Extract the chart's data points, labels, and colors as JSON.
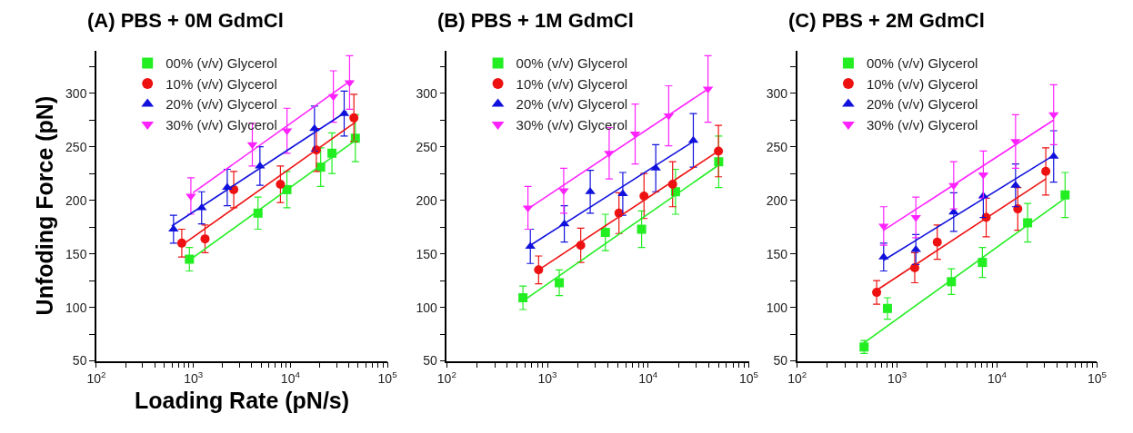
{
  "chart_data": [
    {
      "type": "scatter",
      "title": "(A) PBS + 0M GdmCl",
      "xlabel": "Loading Rate (pN/s)",
      "ylabel": "Unfoding Force (pN)",
      "log": "x",
      "legend": "top left",
      "xlim": [
        100,
        100000
      ],
      "ylim": [
        50,
        340
      ],
      "xticks": [
        {
          "value": 100,
          "label": "10$^{2}$"
        },
        {
          "value": 200,
          "label": null
        },
        {
          "value": 300,
          "label": null
        },
        {
          "value": 400,
          "label": null
        },
        {
          "value": 500,
          "label": null
        },
        {
          "value": 600,
          "label": null
        },
        {
          "value": 700,
          "label": null
        },
        {
          "value": 800,
          "label": null
        },
        {
          "value": 900,
          "label": null
        },
        {
          "value": 1000,
          "label": "10$^{3}$"
        },
        {
          "value": 2000,
          "label": null
        },
        {
          "value": 3000,
          "label": null
        },
        {
          "value": 4000,
          "label": null
        },
        {
          "value": 5000,
          "label": null
        },
        {
          "value": 6000,
          "label": null
        },
        {
          "value": 7000,
          "label": null
        },
        {
          "value": 8000,
          "label": null
        },
        {
          "value": 9000,
          "label": null
        },
        {
          "value": 10000,
          "label": "10$^{4}$"
        },
        {
          "value": 20000,
          "label": null
        },
        {
          "value": 30000,
          "label": null
        },
        {
          "value": 40000,
          "label": null
        },
        {
          "value": 50000,
          "label": null
        },
        {
          "value": 60000,
          "label": null
        },
        {
          "value": 70000,
          "label": null
        },
        {
          "value": 80000,
          "label": null
        },
        {
          "value": 90000,
          "label": null
        },
        {
          "value": 100000,
          "label": "10$^{5}$"
        }
      ],
      "yticks": [
        50,
        {
          "value": 75,
          "label": null
        },
        100,
        {
          "value": 125,
          "label": null
        },
        150,
        {
          "value": 175,
          "label": null
        },
        200,
        {
          "value": 225,
          "label": null
        },
        250,
        {
          "value": 275,
          "label": null
        },
        300,
        {
          "value": 325,
          "label": null
        }
      ],
      "series": [
        {
          "name": "00% (v/v) Glycerol",
          "type": "scatter",
          "marker": "square",
          "color": "#22ee22",
          "x": [
            910,
            4630,
            9200,
            20500,
            26800,
            46700
          ],
          "values": [
            145,
            188,
            210,
            231,
            244,
            258
          ],
          "errors": [
            11,
            15,
            17,
            18,
            19,
            22
          ]
        },
        {
          "name": "10% (v/v) Glycerol",
          "type": "scatter",
          "marker": "circle",
          "color": "#ee1111",
          "x": [
            759,
            1318,
            2605,
            7890,
            18500,
            45100
          ],
          "values": [
            160,
            164,
            210,
            215,
            247,
            277
          ],
          "errors": [
            13,
            13,
            17,
            17,
            20,
            22
          ]
        },
        {
          "name": "20% (v/v) Glycerol",
          "type": "scatter",
          "marker": "triangle",
          "color": "#1111dd",
          "x": [
            624,
            1216,
            2233,
            4850,
            17700,
            35800
          ],
          "values": [
            173,
            193,
            212,
            232,
            267,
            281
          ],
          "errors": [
            13,
            15,
            17,
            18,
            21,
            21
          ]
        },
        {
          "name": "30% (v/v) Glycerol",
          "type": "scatter",
          "marker": "triangle-down",
          "color": "#ff22ff",
          "x": [
            942,
            4050,
            9220,
            27700,
            40700
          ],
          "values": [
            204,
            252,
            265,
            297,
            310
          ],
          "errors": [
            17,
            20,
            21,
            24,
            25
          ]
        },
        {
          "type": "line",
          "color": "#22ee22",
          "x": [
            910,
            46700
          ],
          "values": [
            144,
            256
          ]
        },
        {
          "type": "line",
          "color": "#ee1111",
          "x": [
            730,
            46700
          ],
          "values": [
            157,
            273
          ]
        },
        {
          "type": "line",
          "color": "#1111dd",
          "x": [
            598,
            38000
          ],
          "values": [
            176,
            283
          ]
        },
        {
          "type": "line",
          "color": "#ff22ff",
          "x": [
            990,
            42000
          ],
          "values": [
            207,
            312
          ]
        }
      ]
    },
    {
      "type": "scatter",
      "title": "(B) PBS + 1M GdmCl",
      "log": "x",
      "legend": "top left",
      "xlim": [
        100,
        100000
      ],
      "ylim": [
        50,
        340
      ],
      "xticks": [
        {
          "value": 100,
          "label": "10$^{2}$"
        },
        {
          "value": 200,
          "label": null
        },
        {
          "value": 300,
          "label": null
        },
        {
          "value": 400,
          "label": null
        },
        {
          "value": 500,
          "label": null
        },
        {
          "value": 600,
          "label": null
        },
        {
          "value": 700,
          "label": null
        },
        {
          "value": 800,
          "label": null
        },
        {
          "value": 900,
          "label": null
        },
        {
          "value": 1000,
          "label": "10$^{3}$"
        },
        {
          "value": 2000,
          "label": null
        },
        {
          "value": 3000,
          "label": null
        },
        {
          "value": 4000,
          "label": null
        },
        {
          "value": 5000,
          "label": null
        },
        {
          "value": 6000,
          "label": null
        },
        {
          "value": 7000,
          "label": null
        },
        {
          "value": 8000,
          "label": null
        },
        {
          "value": 9000,
          "label": null
        },
        {
          "value": 10000,
          "label": "10$^{4}$"
        },
        {
          "value": 20000,
          "label": null
        },
        {
          "value": 30000,
          "label": null
        },
        {
          "value": 40000,
          "label": null
        },
        {
          "value": 50000,
          "label": null
        },
        {
          "value": 60000,
          "label": null
        },
        {
          "value": 70000,
          "label": null
        },
        {
          "value": 80000,
          "label": null
        },
        {
          "value": 90000,
          "label": null
        },
        {
          "value": 100000,
          "label": "10$^{5}$"
        }
      ],
      "yticks": [
        50,
        {
          "value": 75,
          "label": null
        },
        100,
        {
          "value": 125,
          "label": null
        },
        150,
        {
          "value": 175,
          "label": null
        },
        200,
        {
          "value": 225,
          "label": null
        },
        250,
        {
          "value": 275,
          "label": null
        },
        300,
        {
          "value": 325,
          "label": null
        }
      ],
      "series": [
        {
          "name": "00% (v/v) Glycerol",
          "type": "scatter",
          "marker": "square",
          "color": "#22ee22",
          "x": [
            571,
            1310,
            3760,
            8610,
            18700,
            50200
          ],
          "values": [
            109,
            123,
            170,
            173,
            208,
            236
          ],
          "errors": [
            11,
            12,
            17,
            17,
            21,
            24
          ]
        },
        {
          "name": "10% (v/v) Glycerol",
          "type": "scatter",
          "marker": "circle",
          "color": "#ee1111",
          "x": [
            817,
            2140,
            5130,
            9100,
            17500,
            49900
          ],
          "values": [
            135,
            158,
            188,
            204,
            215,
            246
          ],
          "errors": [
            13,
            16,
            19,
            21,
            21,
            24
          ]
        },
        {
          "name": "20% (v/v) Glycerol",
          "type": "scatter",
          "marker": "triangle",
          "color": "#1111dd",
          "x": [
            676,
            1470,
            2660,
            5600,
            11900,
            28100
          ],
          "values": [
            157,
            178,
            208,
            206,
            230,
            256
          ],
          "errors": [
            16,
            17,
            20,
            20,
            22,
            25
          ]
        },
        {
          "name": "30% (v/v) Glycerol",
          "type": "scatter",
          "marker": "triangle-down",
          "color": "#ff22ff",
          "x": [
            640,
            1450,
            4100,
            7430,
            16000,
            39300
          ],
          "values": [
            193,
            209,
            244,
            262,
            279,
            304
          ],
          "errors": [
            20,
            21,
            24,
            28,
            28,
            31
          ]
        },
        {
          "type": "line",
          "color": "#22ee22",
          "x": [
            571,
            50200
          ],
          "values": [
            106,
            233
          ]
        },
        {
          "type": "line",
          "color": "#ee1111",
          "x": [
            817,
            49900
          ],
          "values": [
            135,
            246
          ]
        },
        {
          "type": "line",
          "color": "#1111dd",
          "x": [
            676,
            28100
          ],
          "values": [
            158,
            255
          ]
        },
        {
          "type": "line",
          "color": "#ff22ff",
          "x": [
            640,
            39300
          ],
          "values": [
            192,
            304
          ]
        }
      ]
    },
    {
      "type": "scatter",
      "title": "(C) PBS + 2M GdmCl",
      "log": "x",
      "legend": "top left",
      "xlim": [
        100,
        100000
      ],
      "ylim": [
        50,
        340
      ],
      "xticks": [
        {
          "value": 100,
          "label": "10$^{2}$"
        },
        {
          "value": 200,
          "label": null
        },
        {
          "value": 300,
          "label": null
        },
        {
          "value": 400,
          "label": null
        },
        {
          "value": 500,
          "label": null
        },
        {
          "value": 600,
          "label": null
        },
        {
          "value": 700,
          "label": null
        },
        {
          "value": 800,
          "label": null
        },
        {
          "value": 900,
          "label": null
        },
        {
          "value": 1000,
          "label": "10$^{3}$"
        },
        {
          "value": 2000,
          "label": null
        },
        {
          "value": 3000,
          "label": null
        },
        {
          "value": 4000,
          "label": null
        },
        {
          "value": 5000,
          "label": null
        },
        {
          "value": 6000,
          "label": null
        },
        {
          "value": 7000,
          "label": null
        },
        {
          "value": 8000,
          "label": null
        },
        {
          "value": 9000,
          "label": null
        },
        {
          "value": 10000,
          "label": "10$^{4}$"
        },
        {
          "value": 20000,
          "label": null
        },
        {
          "value": 30000,
          "label": null
        },
        {
          "value": 40000,
          "label": null
        },
        {
          "value": 50000,
          "label": null
        },
        {
          "value": 60000,
          "label": null
        },
        {
          "value": 70000,
          "label": null
        },
        {
          "value": 80000,
          "label": null
        },
        {
          "value": 90000,
          "label": null
        },
        {
          "value": 100000,
          "label": "10$^{5}$"
        }
      ],
      "yticks": [
        50,
        {
          "value": 75,
          "label": null
        },
        100,
        {
          "value": 125,
          "label": null
        },
        150,
        {
          "value": 175,
          "label": null
        },
        200,
        {
          "value": 225,
          "label": null
        },
        250,
        {
          "value": 275,
          "label": null
        },
        300,
        {
          "value": 325,
          "label": null
        }
      ],
      "series": [
        {
          "name": "00% (v/v) Glycerol",
          "type": "scatter",
          "marker": "square",
          "color": "#22ee22",
          "x": [
            467,
            800,
            3490,
            7130,
            20200,
            47900
          ],
          "values": [
            63,
            99,
            124,
            142,
            179,
            205
          ],
          "errors": [
            6,
            10,
            12,
            14,
            18,
            21
          ]
        },
        {
          "name": "10% (v/v) Glycerol",
          "type": "scatter",
          "marker": "circle",
          "color": "#ee1111",
          "x": [
            624,
            1500,
            2520,
            7780,
            16100,
            30700
          ],
          "values": [
            114,
            137,
            161,
            184,
            192,
            227
          ],
          "errors": [
            11,
            14,
            16,
            18,
            20,
            22
          ]
        },
        {
          "name": "20% (v/v) Glycerol",
          "type": "scatter",
          "marker": "triangle",
          "color": "#1111dd",
          "x": [
            733,
            1540,
            3680,
            7280,
            15300,
            36800
          ],
          "values": [
            147,
            154,
            189,
            204,
            214,
            241
          ],
          "errors": [
            13,
            14,
            18,
            20,
            20,
            24
          ]
        },
        {
          "name": "30% (v/v) Glycerol",
          "type": "scatter",
          "marker": "triangle-down",
          "color": "#ff22ff",
          "x": [
            733,
            1540,
            3680,
            7280,
            15300,
            36800
          ],
          "values": [
            176,
            184,
            214,
            224,
            255,
            280
          ],
          "errors": [
            18,
            19,
            22,
            22,
            25,
            28
          ]
        },
        {
          "type": "line",
          "color": "#22ee22",
          "x": [
            467,
            47900
          ],
          "values": [
            67,
            202
          ]
        },
        {
          "type": "line",
          "color": "#ee1111",
          "x": [
            624,
            30700
          ],
          "values": [
            116,
            220
          ]
        },
        {
          "type": "line",
          "color": "#1111dd",
          "x": [
            733,
            36800
          ],
          "values": [
            144,
            242
          ]
        },
        {
          "type": "line",
          "color": "#ff22ff",
          "x": [
            733,
            36800
          ],
          "values": [
            172,
            275
          ]
        }
      ]
    }
  ]
}
